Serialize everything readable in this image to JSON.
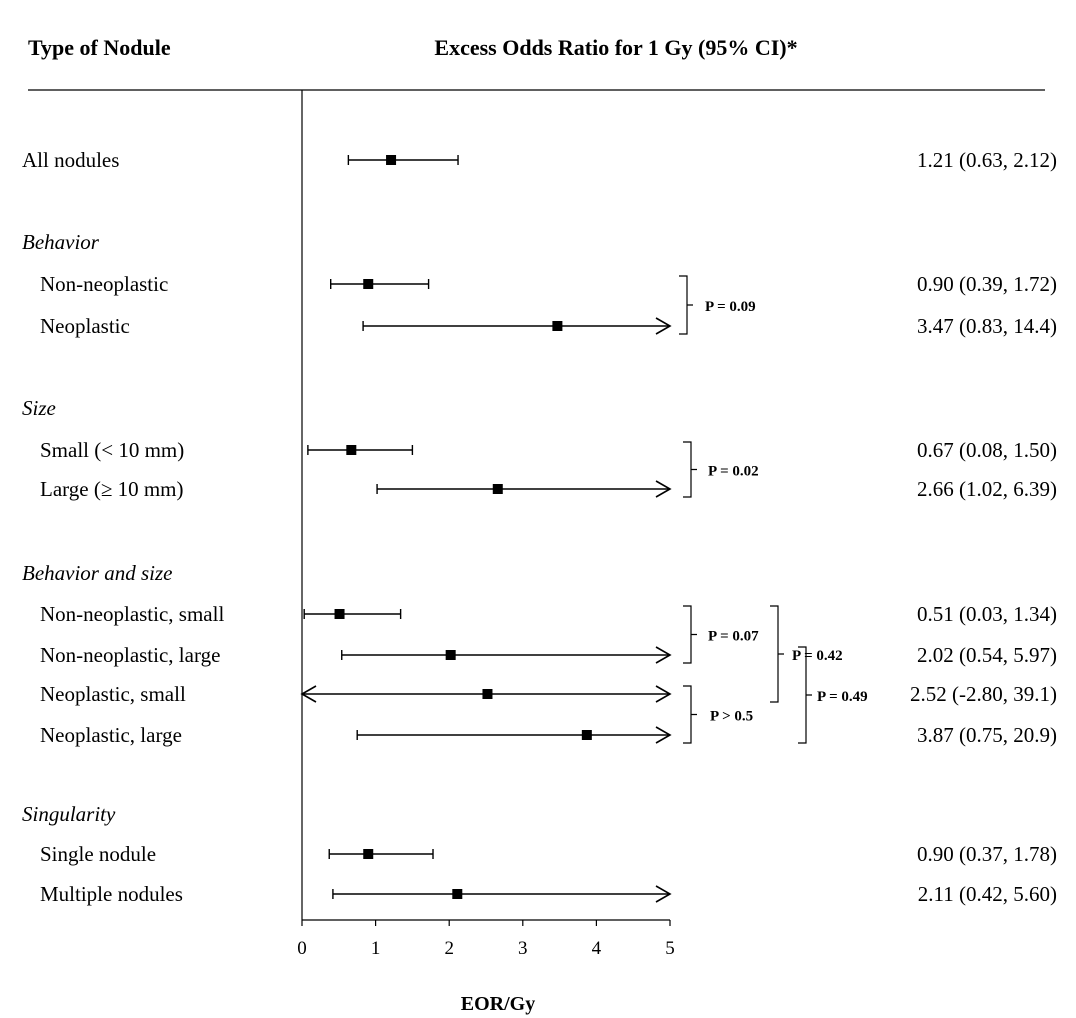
{
  "header": {
    "left": "Type of Nodule",
    "center": "Excess Odds Ratio for 1 Gy (95% CI)*"
  },
  "chart_data": {
    "type": "forest",
    "xlabel": "EOR/Gy",
    "xlim": [
      0,
      5
    ],
    "xticks": [
      "0",
      "1",
      "2",
      "3",
      "4",
      "5"
    ],
    "rows": [
      {
        "kind": "item",
        "label": "All nodules",
        "estimate": 1.21,
        "lower": 0.63,
        "upper": 2.12,
        "upper_arrow": false,
        "lower_arrow": false,
        "text": "1.21 (0.63, 2.12)"
      },
      {
        "kind": "group",
        "label": "Behavior"
      },
      {
        "kind": "item",
        "label": "Non-neoplastic",
        "estimate": 0.9,
        "lower": 0.39,
        "upper": 1.72,
        "upper_arrow": false,
        "lower_arrow": false,
        "text": "0.90 (0.39, 1.72)"
      },
      {
        "kind": "item",
        "label": "Neoplastic",
        "estimate": 3.47,
        "lower": 0.83,
        "upper": 14.4,
        "upper_arrow": true,
        "lower_arrow": false,
        "text": "3.47 (0.83, 14.4)"
      },
      {
        "kind": "group",
        "label": "Size"
      },
      {
        "kind": "item",
        "label": "Small  (< 10 mm)",
        "estimate": 0.67,
        "lower": 0.08,
        "upper": 1.5,
        "upper_arrow": false,
        "lower_arrow": false,
        "text": "0.67 (0.08, 1.50)"
      },
      {
        "kind": "item",
        "label": "Large (≥ 10 mm)",
        "estimate": 2.66,
        "lower": 1.02,
        "upper": 6.39,
        "upper_arrow": true,
        "lower_arrow": false,
        "text": "2.66 (1.02, 6.39)"
      },
      {
        "kind": "group",
        "label": "Behavior and size"
      },
      {
        "kind": "item",
        "label": "Non-neoplastic, small",
        "estimate": 0.51,
        "lower": 0.03,
        "upper": 1.34,
        "upper_arrow": false,
        "lower_arrow": false,
        "text": "0.51 (0.03, 1.34)"
      },
      {
        "kind": "item",
        "label": "Non-neoplastic, large",
        "estimate": 2.02,
        "lower": 0.54,
        "upper": 5.97,
        "upper_arrow": true,
        "lower_arrow": false,
        "text": "2.02 (0.54, 5.97)"
      },
      {
        "kind": "item",
        "label": "Neoplastic, small",
        "estimate": 2.52,
        "lower": -2.8,
        "upper": 39.1,
        "upper_arrow": true,
        "lower_arrow": true,
        "text": "2.52 (-2.80, 39.1)"
      },
      {
        "kind": "item",
        "label": "Neoplastic, large",
        "estimate": 3.87,
        "lower": 0.75,
        "upper": 20.9,
        "upper_arrow": true,
        "lower_arrow": false,
        "text": "3.87 (0.75, 20.9)"
      },
      {
        "kind": "group",
        "label": "Singularity"
      },
      {
        "kind": "item",
        "label": "Single nodule",
        "estimate": 0.9,
        "lower": 0.37,
        "upper": 1.78,
        "upper_arrow": false,
        "lower_arrow": false,
        "text": "0.90 (0.37, 1.78)"
      },
      {
        "kind": "item",
        "label": "Multiple nodules",
        "estimate": 2.11,
        "lower": 0.42,
        "upper": 5.6,
        "upper_arrow": true,
        "lower_arrow": false,
        "text": "2.11 (0.42, 5.60)"
      }
    ],
    "comparisons": [
      {
        "rows": [
          "Non-neoplastic",
          "Neoplastic"
        ],
        "text": "P = 0.09"
      },
      {
        "rows": [
          "Small  (< 10 mm)",
          "Large (≥ 10 mm)"
        ],
        "text": "P = 0.02"
      },
      {
        "rows": [
          "Non-neoplastic, small",
          "Non-neoplastic, large"
        ],
        "text": "P = 0.07"
      },
      {
        "rows": [
          "Neoplastic, small",
          "Neoplastic, large"
        ],
        "text": "P > 0.5"
      },
      {
        "rows": [
          "Non-neoplastic, small",
          "Neoplastic, small"
        ],
        "text": "P = 0.42"
      },
      {
        "rows": [
          "Non-neoplastic, large",
          "Neoplastic, large"
        ],
        "text": "P = 0.49"
      }
    ]
  }
}
